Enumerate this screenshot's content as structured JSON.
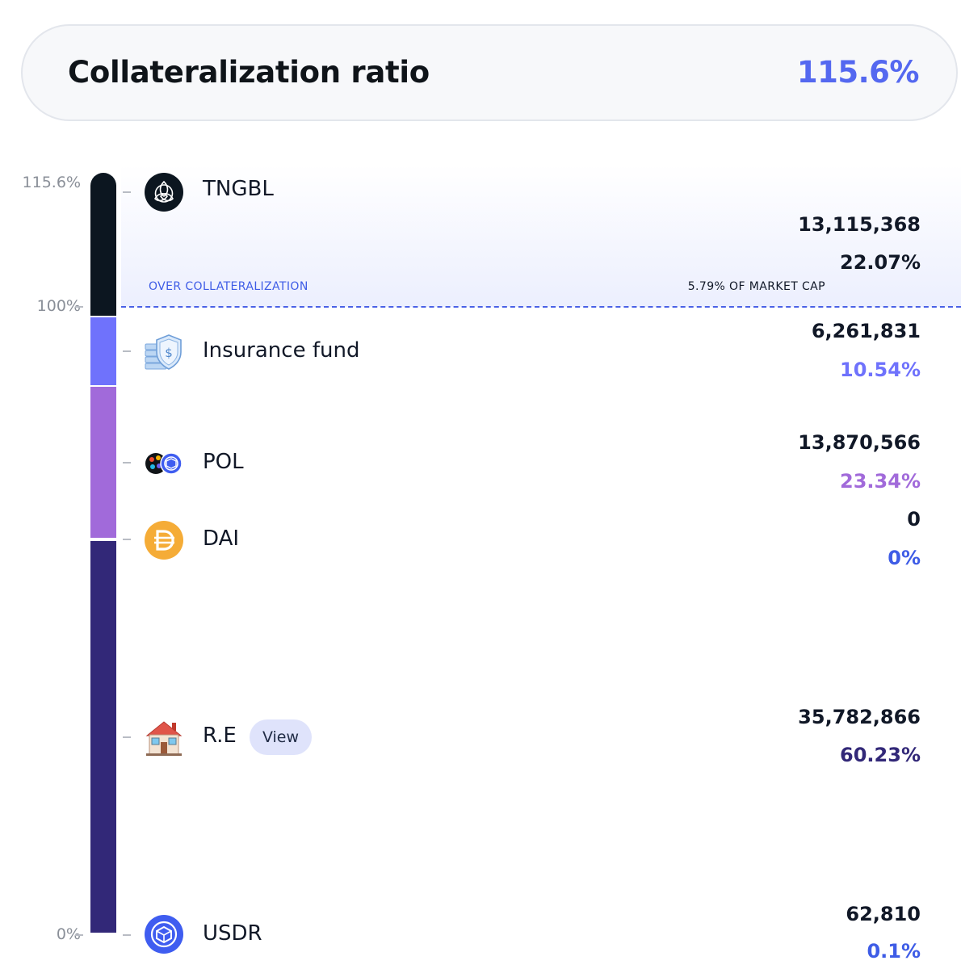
{
  "header": {
    "title": "Collateralization ratio",
    "value": "115.6%"
  },
  "axis": {
    "top": "115.6%",
    "mid": "100%",
    "bottom": "0%"
  },
  "over_collateralization": {
    "label": "OVER COLLATERALIZATION",
    "market_cap_note": "5.79% OF MARKET CAP"
  },
  "assets": [
    {
      "name": "TNGBL",
      "amount": "13,115,368",
      "percent": "22.07%",
      "percent_color": "#111827",
      "bar_color": "#0c1620",
      "icon": "tngbl-logo-icon"
    },
    {
      "name": "Insurance fund",
      "amount": "6,261,831",
      "percent": "10.54%",
      "percent_color": "#6f72fc",
      "bar_color": "#6f72fc",
      "icon": "shield-dollar-icon"
    },
    {
      "name": "POL",
      "amount": "13,870,566",
      "percent": "23.34%",
      "percent_color": "#a16ada",
      "bar_color": "#a16ada",
      "icon": "pol-pair-icon"
    },
    {
      "name": "DAI",
      "amount": "0",
      "percent": "0%",
      "percent_color": "#3e5ce6",
      "bar_color": "#f5ac37",
      "icon": "dai-coin-icon"
    },
    {
      "name": "R.E",
      "amount": "35,782,866",
      "percent": "60.23%",
      "percent_color": "#322878",
      "bar_color": "#322878",
      "icon": "house-icon",
      "action": "View"
    },
    {
      "name": "USDR",
      "amount": "62,810",
      "percent": "0.1%",
      "percent_color": "#3e5ce6",
      "bar_color": "#4a61e6",
      "icon": "usdr-coin-icon"
    }
  ]
}
